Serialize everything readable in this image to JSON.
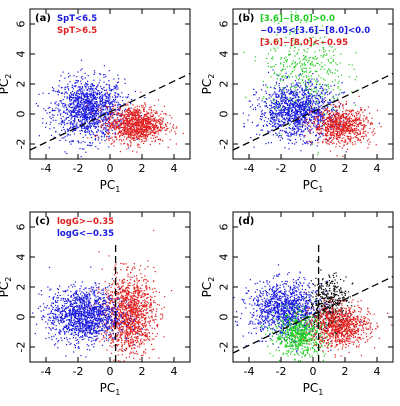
{
  "chart_data": [
    {
      "type": "scatter",
      "panel": "(a)",
      "xlabel": "PC",
      "xlabel_sub": "1",
      "ylabel": "PC",
      "ylabel_sub": "2",
      "xlim": [
        -5,
        5
      ],
      "ylim": [
        -3,
        7
      ],
      "xticks": [
        -4,
        -2,
        0,
        2,
        4
      ],
      "yticks": [
        -2,
        0,
        2,
        4,
        6
      ],
      "legend_position": "top-left",
      "series": [
        {
          "name": "SpT<6.5",
          "color": "#1a1adf",
          "cluster": {
            "cx": -1.3,
            "cy": 0.3,
            "sx": 1.1,
            "sy": 1.0,
            "n": 1400
          }
        },
        {
          "name": "SpT>6.5",
          "color": "#e02020",
          "cluster": {
            "cx": 1.6,
            "cy": -0.7,
            "sx": 0.9,
            "sy": 0.6,
            "n": 1100
          }
        }
      ],
      "lines": [
        {
          "style": "dashed",
          "points": [
            [
              -5,
              -2.4
            ],
            [
              5,
              2.7
            ]
          ]
        }
      ]
    },
    {
      "type": "scatter",
      "panel": "(b)",
      "xlabel": "PC",
      "xlabel_sub": "1",
      "ylabel": "PC",
      "ylabel_sub": "2",
      "xlim": [
        -5,
        5
      ],
      "ylim": [
        -3,
        7
      ],
      "xticks": [
        -4,
        -2,
        0,
        2,
        4
      ],
      "yticks": [
        -2,
        0,
        2,
        4,
        6
      ],
      "legend_position": "top-left",
      "series": [
        {
          "name": "[3.6]−[8.0]>0.0",
          "color": "#22cc22",
          "cluster": {
            "cx": -0.5,
            "cy": 2.6,
            "sx": 1.3,
            "sy": 1.7,
            "n": 450
          }
        },
        {
          "name": "−0.95<[3.6]−[8.0]<0.0",
          "color": "#1a1adf",
          "cluster": {
            "cx": -1.0,
            "cy": 0.2,
            "sx": 1.2,
            "sy": 0.9,
            "n": 1300
          }
        },
        {
          "name": "[3.6]−[8.0]<−0.95",
          "color": "#e02020",
          "cluster": {
            "cx": 1.8,
            "cy": -0.8,
            "sx": 0.9,
            "sy": 0.6,
            "n": 800
          }
        }
      ],
      "lines": [
        {
          "style": "dashed",
          "points": [
            [
              -5,
              -2.4
            ],
            [
              5,
              2.7
            ]
          ]
        }
      ]
    },
    {
      "type": "scatter",
      "panel": "(c)",
      "xlabel": "PC",
      "xlabel_sub": "1",
      "ylabel": "PC",
      "ylabel_sub": "2",
      "xlim": [
        -5,
        5
      ],
      "ylim": [
        -3,
        7
      ],
      "xticks": [
        -4,
        -2,
        0,
        2,
        4
      ],
      "yticks": [
        -2,
        0,
        2,
        4,
        6
      ],
      "legend_position": "top-left",
      "series": [
        {
          "name": "logG>−0.35",
          "color": "#e02020",
          "cluster": {
            "cx": 1.2,
            "cy": 0.2,
            "sx": 0.8,
            "sy": 1.3,
            "n": 1300
          }
        },
        {
          "name": "logG<−0.35",
          "color": "#1a1adf",
          "cluster": {
            "cx": -1.6,
            "cy": 0.1,
            "sx": 1.1,
            "sy": 0.9,
            "n": 1400
          }
        }
      ],
      "lines": [
        {
          "style": "dashed",
          "points": [
            [
              0.35,
              -3
            ],
            [
              0.35,
              4.8
            ]
          ]
        }
      ]
    },
    {
      "type": "scatter",
      "panel": "(d)",
      "xlabel": "PC",
      "xlabel_sub": "1",
      "ylabel": "PC",
      "ylabel_sub": "2",
      "xlim": [
        -5,
        5
      ],
      "ylim": [
        -3,
        7
      ],
      "xticks": [
        -4,
        -2,
        0,
        2,
        4
      ],
      "yticks": [
        -2,
        0,
        2,
        4,
        6
      ],
      "series": [
        {
          "color": "#1a1adf",
          "cluster": {
            "cx": -1.7,
            "cy": 0.5,
            "sx": 1.1,
            "sy": 0.9,
            "n": 1200
          }
        },
        {
          "color": "#000000",
          "cluster": {
            "cx": 1.0,
            "cy": 1.0,
            "sx": 0.6,
            "sy": 0.9,
            "n": 400
          }
        },
        {
          "color": "#22cc22",
          "cluster": {
            "cx": -0.8,
            "cy": -1.2,
            "sx": 0.8,
            "sy": 0.7,
            "n": 700
          }
        },
        {
          "color": "#e02020",
          "cluster": {
            "cx": 1.7,
            "cy": -0.6,
            "sx": 0.9,
            "sy": 0.7,
            "n": 900
          }
        }
      ],
      "lines": [
        {
          "style": "dashed",
          "points": [
            [
              -5,
              -2.4
            ],
            [
              5,
              2.7
            ]
          ]
        },
        {
          "style": "dashed",
          "points": [
            [
              0.35,
              -3
            ],
            [
              0.35,
              4.8
            ]
          ]
        }
      ]
    }
  ]
}
